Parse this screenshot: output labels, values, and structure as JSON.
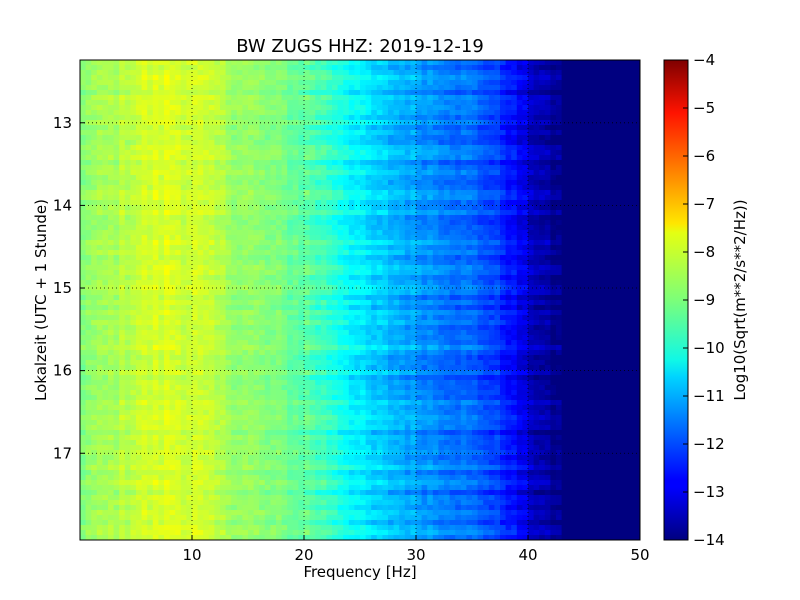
{
  "chart_data": {
    "type": "heatmap",
    "title": "BW ZUGS HHZ: 2019-12-19",
    "xlabel": "Frequency [Hz]",
    "ylabel": "Lokalzeit (UTC + 1 Stunde)",
    "xlim": [
      0,
      50
    ],
    "ylim": [
      12.24,
      18.05
    ],
    "y_inverted": true,
    "x_ticks": [
      10,
      20,
      30,
      40,
      50
    ],
    "y_ticks": [
      13,
      14,
      15,
      16,
      17
    ],
    "grid": true,
    "colormap": "jet",
    "colorbar": {
      "label": "Log10(Sqrt(m**2/s**2/Hz))",
      "range": [
        -14,
        -4
      ],
      "ticks": [
        -4,
        -5,
        -6,
        -7,
        -8,
        -9,
        -10,
        -11,
        -12,
        -13,
        -14
      ]
    },
    "spectrum_profile": {
      "frequency_hz": [
        0,
        2,
        5,
        8,
        10,
        13,
        16,
        20,
        23,
        26,
        30,
        33,
        36,
        38,
        40,
        42,
        44,
        50
      ],
      "log10_amplitude": [
        -8.9,
        -8.7,
        -8.3,
        -8.1,
        -8.2,
        -8.6,
        -8.9,
        -9.3,
        -9.9,
        -10.7,
        -11.2,
        -11.5,
        -11.9,
        -12.4,
        -13.2,
        -13.8,
        -14.0,
        -14.0
      ]
    }
  }
}
